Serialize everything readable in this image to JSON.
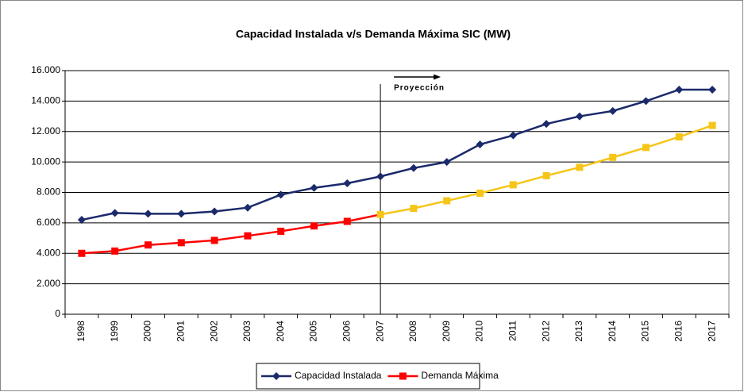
{
  "chart_data": {
    "type": "line",
    "title": "Capacidad Instalada v/s Demanda Máxima SIC (MW)",
    "categories": [
      "1998",
      "1999",
      "2000",
      "2001",
      "2002",
      "2003",
      "2004",
      "2005",
      "2006",
      "2007",
      "2008",
      "2009",
      "2010",
      "2011",
      "2012",
      "2013",
      "2014",
      "2015",
      "2016",
      "2017"
    ],
    "series": [
      {
        "name": "Capacidad Instalada",
        "color": "#1b2a6b",
        "marker": "diamond",
        "values": [
          6200,
          6650,
          6600,
          6600,
          6750,
          7000,
          7850,
          8300,
          8600,
          9050,
          9600,
          10000,
          11150,
          11750,
          12500,
          13000,
          13350,
          14000,
          14750,
          14750
        ]
      },
      {
        "name": "Demanda Máxima",
        "color": "#ff0000",
        "marker": "square",
        "projection_color": "#f5c518",
        "values": [
          4000,
          4150,
          4550,
          4700,
          4850,
          5150,
          5450,
          5800,
          6100,
          6550,
          6950,
          7450,
          7950,
          8500,
          9100,
          9650,
          10300,
          10950,
          11650,
          12400
        ]
      }
    ],
    "annotation": {
      "text": "Proyección",
      "category": "2007"
    },
    "ylim": [
      0,
      16000
    ],
    "yticks": [
      0,
      {
        "value": 2000,
        "label": "2.000"
      },
      {
        "value": 4000,
        "label": "4.000"
      },
      {
        "value": 6000,
        "label": "6.000"
      },
      {
        "value": 8000,
        "label": "8.000"
      },
      {
        "value": 10000,
        "label": "10.000"
      },
      {
        "value": 12000,
        "label": "12.000"
      },
      {
        "value": 14000,
        "label": "14.000"
      },
      {
        "value": 16000,
        "label": "16.000"
      }
    ],
    "grid": true,
    "legend": "bottom"
  }
}
